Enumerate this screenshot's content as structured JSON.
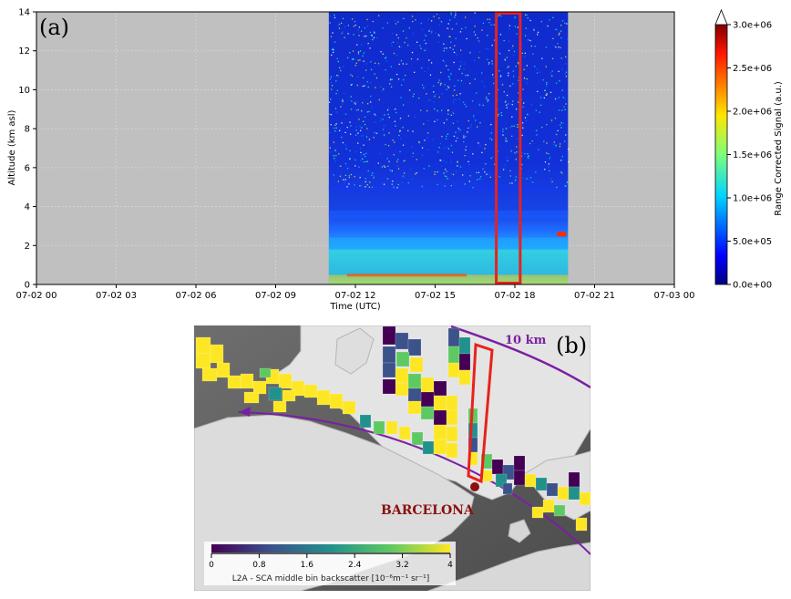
{
  "chart_data": [
    {
      "type": "heatmap",
      "panel_label": "(a)",
      "xlabel": "Time (UTC)",
      "ylabel": "Altitude (km asl)",
      "x_ticks": [
        "07-02 00",
        "07-02 03",
        "07-02 06",
        "07-02 09",
        "07-02 12",
        "07-02 15",
        "07-02 18",
        "07-02 21",
        "07-03 00"
      ],
      "x_range_hours": [
        0,
        24
      ],
      "ylim": [
        0,
        14
      ],
      "y_ticks": [
        0,
        2,
        4,
        6,
        8,
        10,
        12,
        14
      ],
      "data_window_hours": [
        11.0,
        20.0
      ],
      "highlight_box_hours": [
        17.3,
        18.2
      ],
      "colorbar": {
        "label": "Range Corrected Signal (a.u.)",
        "min": 0,
        "max": 3000000,
        "ticks": [
          "0.0e+00",
          "5.0e+05",
          "1.0e+06",
          "1.5e+06",
          "2.0e+06",
          "2.5e+06",
          "3.0e+06"
        ],
        "colormap": "jet",
        "extend": "max"
      },
      "colors": {
        "no_data": "#c0c0c0",
        "box": "#e8221c"
      },
      "grid": true
    },
    {
      "type": "heatmap",
      "panel_label": "(b)",
      "annotations": [
        "10 km",
        "BARCELONA"
      ],
      "colorbar": {
        "label": "L2A - SCA middle bin backscatter [10⁻⁶m⁻¹ sr⁻¹]",
        "min": 0,
        "max": 4,
        "ticks": [
          "0",
          "0.8",
          "1.6",
          "2.4",
          "3.2",
          "4"
        ],
        "colormap": "viridis"
      },
      "colors": {
        "track": "#7b1fa2",
        "box": "#e8221c",
        "city_marker": "#8b1010"
      }
    }
  ]
}
